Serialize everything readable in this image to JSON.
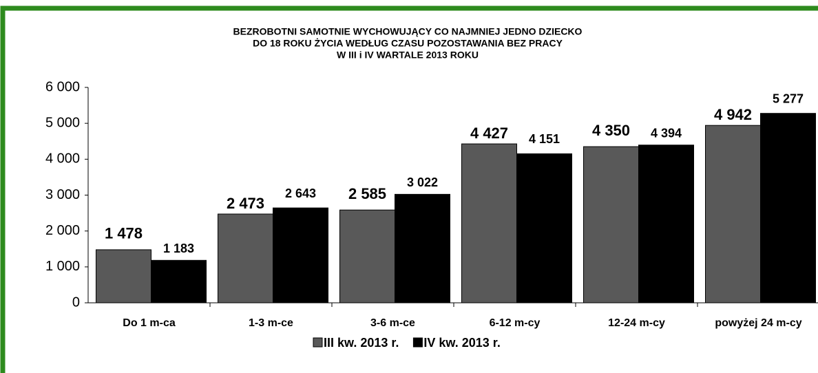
{
  "chart_data": {
    "type": "bar",
    "title": [
      "BEZROBOTNI SAMOTNIE WYCHOWUJĄCY CO NAJMNIEJ JEDNO DZIECKO",
      "DO 18 ROKU ŻYCIA WEDŁUG  CZASU POZOSTAWANIA BEZ PRACY",
      "W  III i IV WARTALE 2013 ROKU"
    ],
    "categories": [
      "Do 1 m-ca",
      "1-3 m-ce",
      "3-6 m-ce",
      "6-12 m-cy",
      "12-24 m-cy",
      "powyżej 24 m-cy"
    ],
    "series": [
      {
        "name": "III kw. 2013 r.",
        "color": "#595959",
        "values": [
          1478,
          2473,
          2585,
          4427,
          4350,
          4942
        ],
        "value_labels": [
          "1 478",
          "2 473",
          "2 585",
          "4 427",
          "4 350",
          "4 942"
        ]
      },
      {
        "name": "IV kw. 2013 r.",
        "color": "#000000",
        "values": [
          1183,
          2643,
          3022,
          4151,
          4394,
          5277
        ],
        "value_labels": [
          "1 183",
          "2 643",
          "3 022",
          "4 151",
          "4 394",
          "5 277"
        ]
      }
    ],
    "ylim": [
      0,
      6000
    ],
    "yticks": [
      0,
      {
        "value": 1000,
        "label": "1 000"
      },
      {
        "value": 2000,
        "label": "2 000"
      },
      {
        "value": 3000,
        "label": "3 000"
      },
      {
        "value": 4000,
        "label": "4 000"
      },
      {
        "value": 5000,
        "label": "5 000"
      },
      {
        "value": 6000,
        "label": "6 000"
      }
    ],
    "legend": "bottom"
  }
}
